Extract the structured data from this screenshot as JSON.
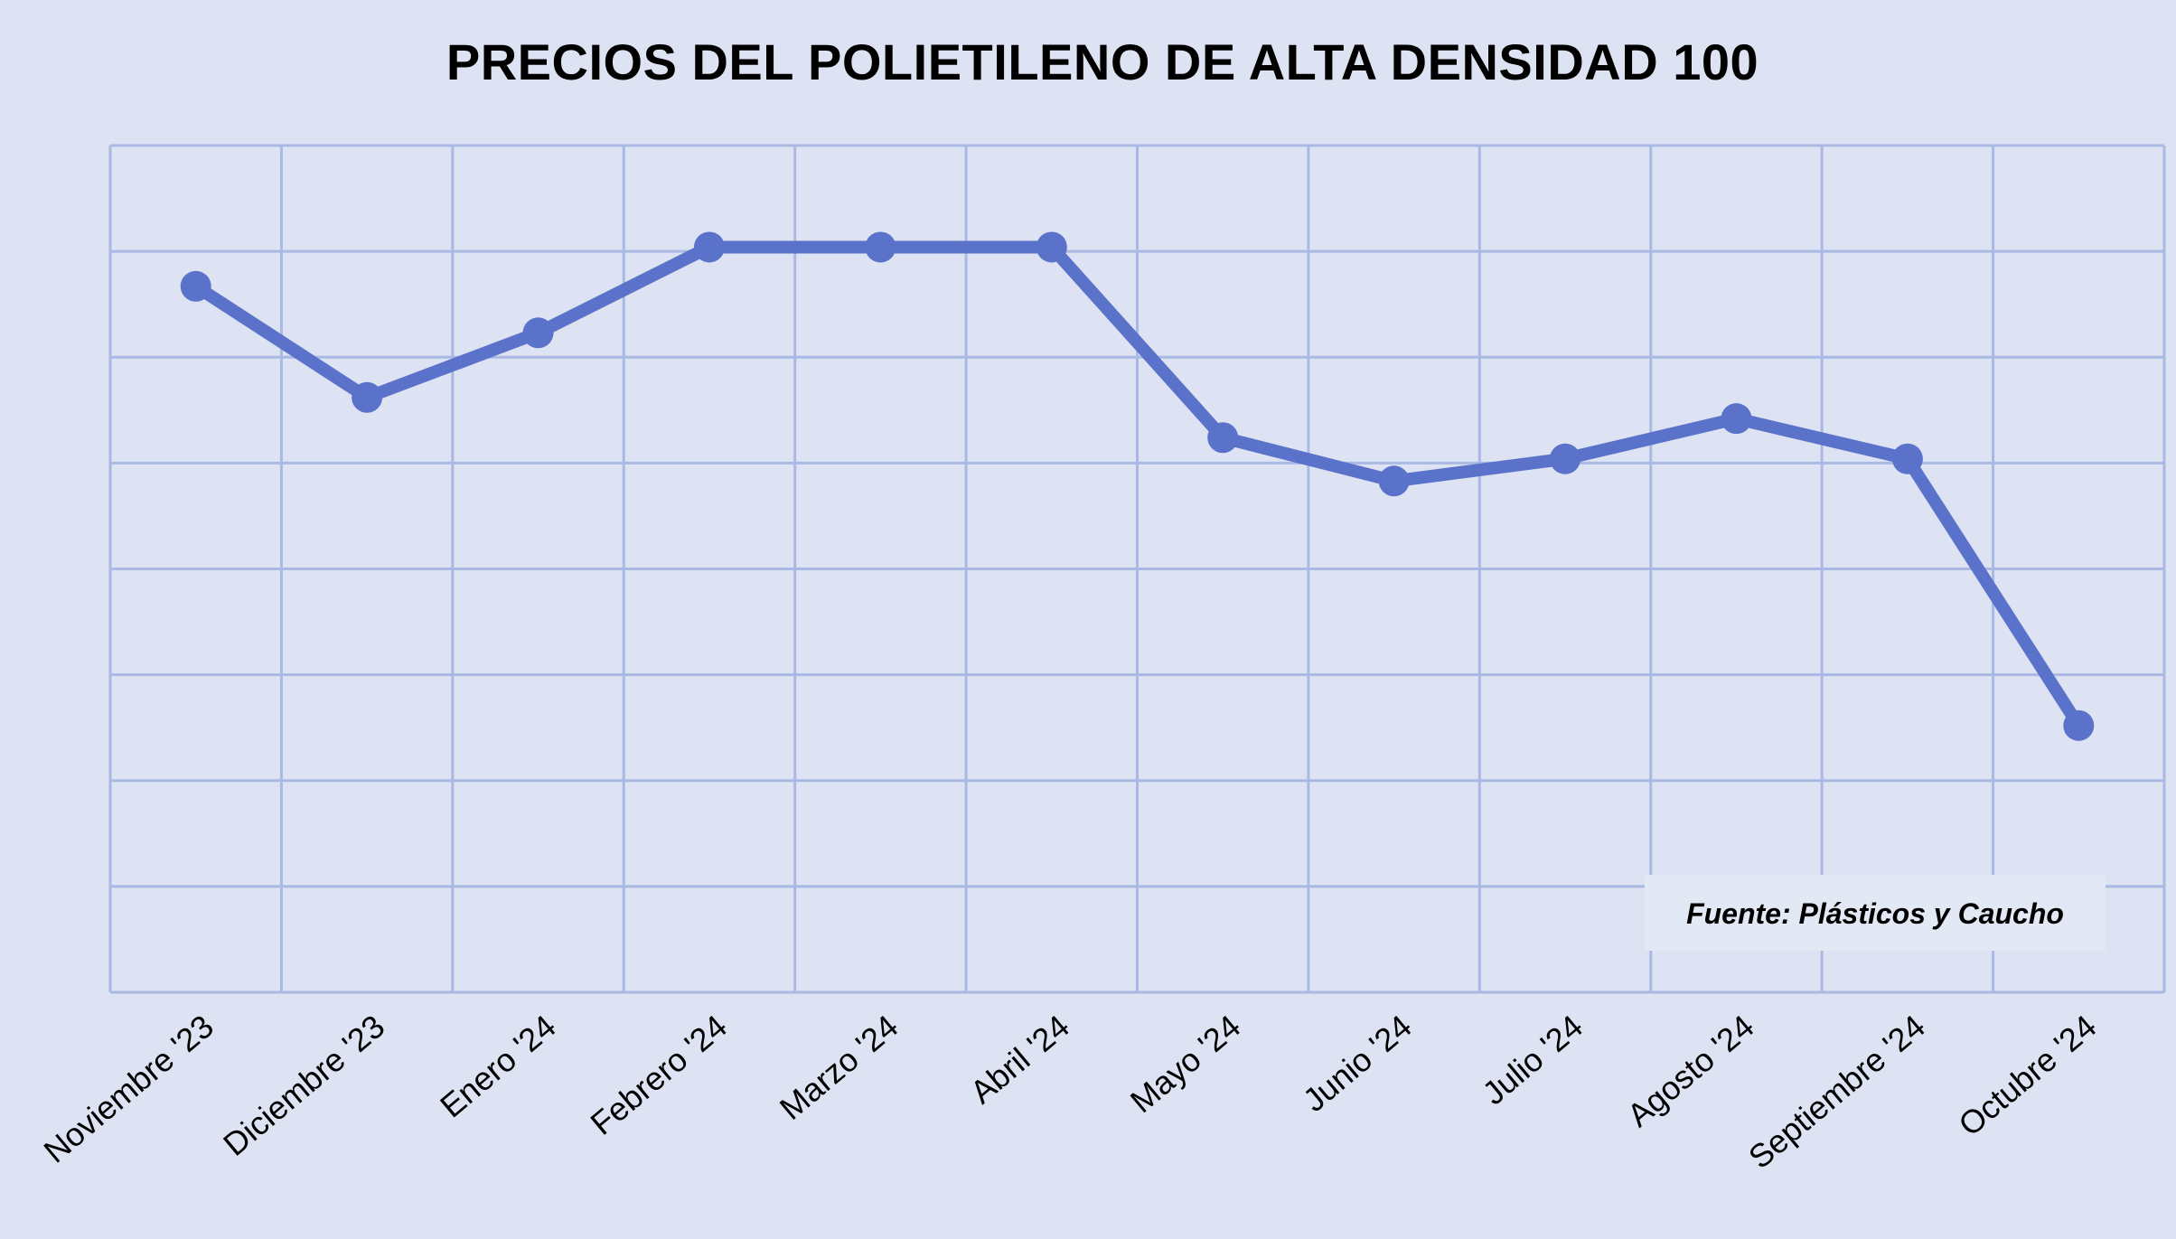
{
  "colors": {
    "background": "#dde3f2",
    "grid": "#a9b9e3",
    "series": "#5a72c9"
  },
  "chart_data": {
    "type": "line",
    "title": "PRECIOS DEL POLIETILENO DE ALTA DENSIDAD 100",
    "xlabel": "",
    "ylabel": "",
    "categories": [
      "Noviembre '23",
      "Diciembre '23",
      "Enero '24",
      "Febrero '24",
      "Marzo '24",
      "Abril '24",
      "Mayo '24",
      "Junio '24",
      "Julio '24",
      "Agosto '24",
      "Septiembre '24",
      "Octubre '24"
    ],
    "series": [
      {
        "values": [
          6.67,
          5.62,
          6.23,
          7.04,
          7.04,
          7.04,
          5.24,
          4.83,
          5.04,
          5.42,
          5.04,
          2.52
        ]
      }
    ],
    "ylim": [
      0,
      8
    ],
    "grid": true,
    "legend": "none",
    "annotation": "Fuente: Plásticos y Caucho"
  }
}
